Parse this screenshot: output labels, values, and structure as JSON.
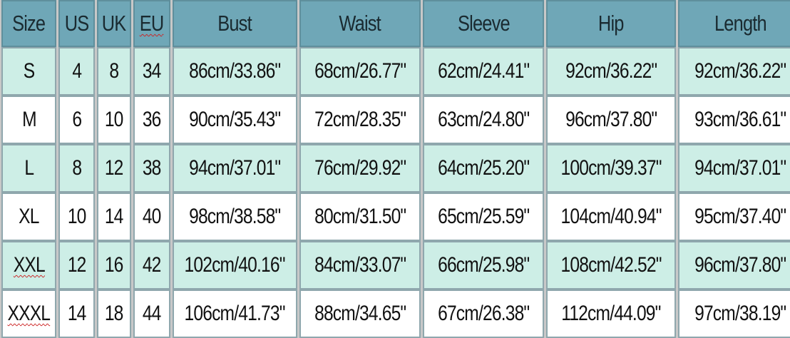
{
  "headers": [
    "Size",
    "US",
    "UK",
    "EU",
    "Bust",
    "Waist",
    "Sleeve",
    "Hip",
    "Length"
  ],
  "rows": [
    [
      "S",
      "4",
      "8",
      "34",
      "86cm/33.86\"",
      "68cm/26.77\"",
      "62cm/24.41\"",
      "92cm/36.22\"",
      "92cm/36.22\""
    ],
    [
      "M",
      "6",
      "10",
      "36",
      "90cm/35.43\"",
      "72cm/28.35\"",
      "63cm/24.80\"",
      "96cm/37.80\"",
      "93cm/36.61\""
    ],
    [
      "L",
      "8",
      "12",
      "38",
      "94cm/37.01\"",
      "76cm/29.92\"",
      "64cm/25.20\"",
      "100cm/39.37\"",
      "94cm/37.01\""
    ],
    [
      "XL",
      "10",
      "14",
      "40",
      "98cm/38.58\"",
      "80cm/31.50\"",
      "65cm/25.59\"",
      "104cm/40.94\"",
      "95cm/37.40\""
    ],
    [
      "XXL",
      "12",
      "16",
      "42",
      "102cm/40.16\"",
      "84cm/33.07\"",
      "66cm/25.98\"",
      "108cm/42.52\"",
      "96cm/37.80\""
    ],
    [
      "XXXL",
      "14",
      "18",
      "44",
      "106cm/41.73\"",
      "88cm/34.65\"",
      "67cm/26.38\"",
      "112cm/44.09\"",
      "97cm/38.19\""
    ]
  ],
  "colors": {
    "header_bg": "#6fa7b7",
    "row_tint": "#cdeee6",
    "row_plain": "#ffffff",
    "grid": "#c8c8c8"
  }
}
